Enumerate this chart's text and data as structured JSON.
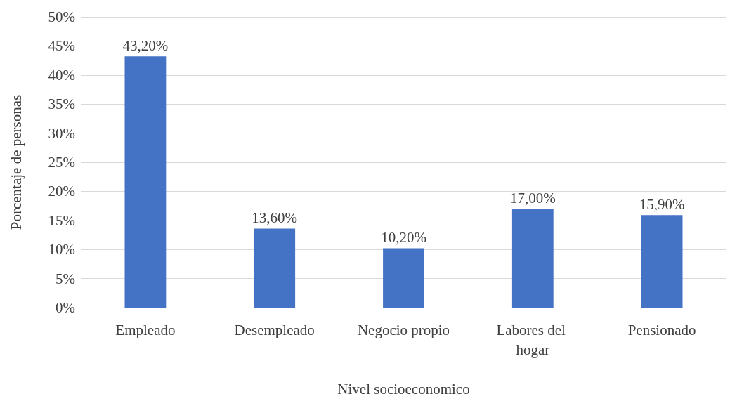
{
  "chart_data": {
    "type": "bar",
    "xlabel": "Nivel socioeconomico",
    "ylabel": "Porcentaje de personas",
    "categories": [
      "Empleado",
      "Desempleado",
      "Negocio propio",
      "Labores del hogar",
      "Pensionado"
    ],
    "values": [
      43.2,
      13.6,
      10.2,
      17.0,
      15.9
    ],
    "value_labels": [
      "43,20%",
      "13,60%",
      "10,20%",
      "17,00%",
      "15,90%"
    ],
    "color": "#4472c4",
    "ylim": [
      0,
      50
    ],
    "yticks": [
      {
        "value": 0,
        "label": "0%"
      },
      {
        "value": 5,
        "label": "5%"
      },
      {
        "value": 10,
        "label": "10%"
      },
      {
        "value": 15,
        "label": "15%"
      },
      {
        "value": 20,
        "label": "20%"
      },
      {
        "value": 25,
        "label": "25%"
      },
      {
        "value": 30,
        "label": "30%"
      },
      {
        "value": 35,
        "label": "35%"
      },
      {
        "value": 40,
        "label": "40%"
      },
      {
        "value": 45,
        "label": "45%"
      },
      {
        "value": 50,
        "label": "50%"
      }
    ],
    "grid": "y"
  }
}
